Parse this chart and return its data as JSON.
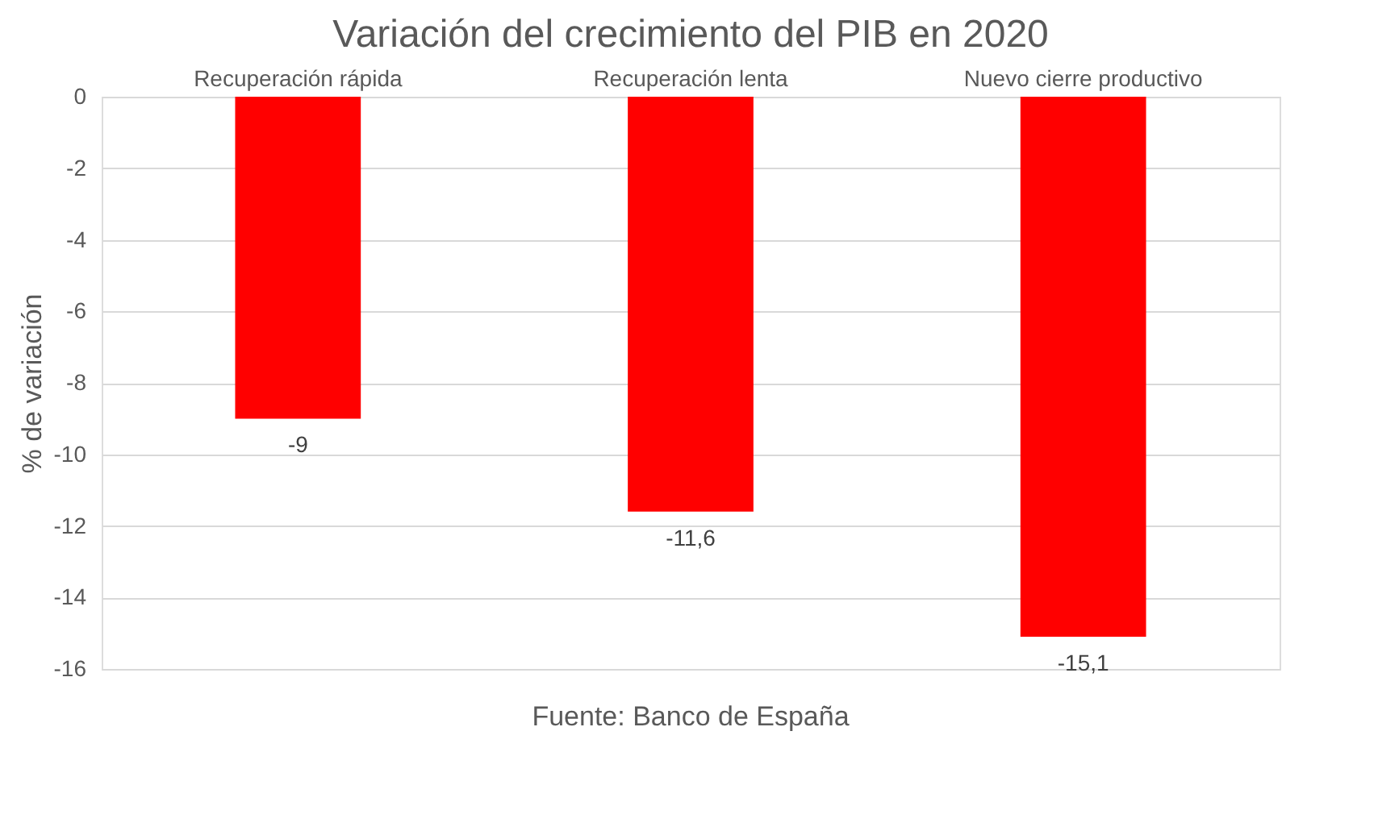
{
  "chart_data": {
    "type": "bar",
    "title": "Variación del crecimiento del PIB en 2020",
    "ylabel": "% de variación",
    "categories": [
      "Recuperación rápida",
      "Recuperación lenta",
      "Nuevo cierre productivo"
    ],
    "values": [
      -9,
      -11.6,
      -15.1
    ],
    "color": "#ff0000",
    "ylim": [
      -16,
      0
    ],
    "yticks": [
      0,
      -2,
      -4,
      -6,
      -8,
      -10,
      -12,
      -14,
      -16
    ],
    "grid": "y",
    "value_labels": [
      "-9",
      "-11,6",
      "-15,1"
    ],
    "annotations": [
      "Fuente: Banco de España"
    ]
  }
}
